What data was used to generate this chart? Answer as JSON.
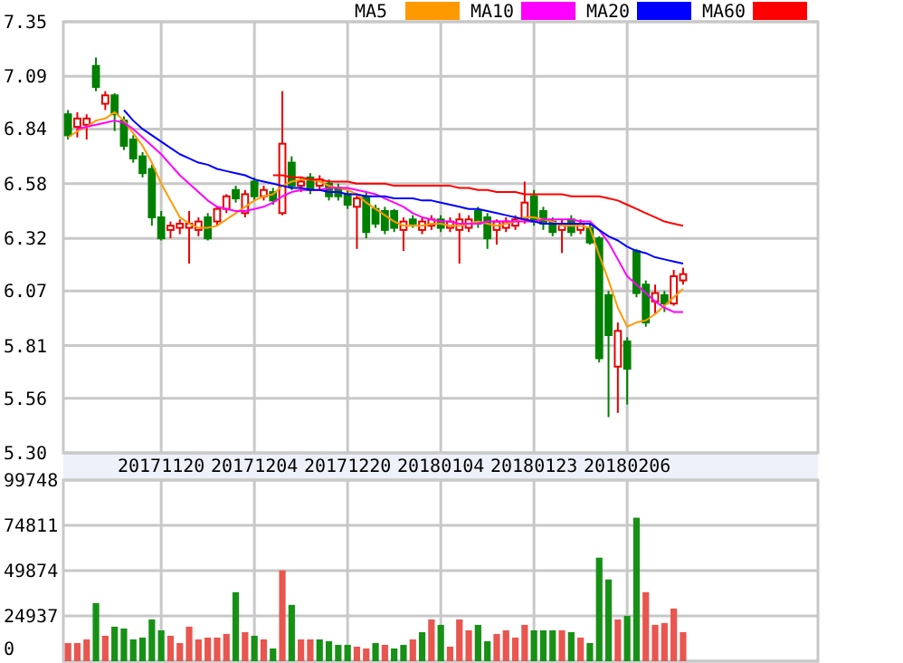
{
  "chart_data": [
    {
      "type": "candlestick",
      "categories": [
        null,
        null,
        null,
        null,
        null,
        null,
        null,
        null,
        null,
        null,
        "20171120",
        null,
        null,
        null,
        null,
        null,
        null,
        null,
        null,
        null,
        "20171204",
        null,
        null,
        null,
        null,
        null,
        null,
        null,
        null,
        null,
        "20171220",
        null,
        null,
        null,
        null,
        null,
        null,
        null,
        null,
        null,
        "20180104",
        null,
        null,
        null,
        null,
        null,
        null,
        null,
        null,
        null,
        "20180123",
        null,
        null,
        null,
        null,
        null,
        null,
        null,
        null,
        null,
        "20180206",
        null,
        null,
        null,
        null,
        null,
        null
      ],
      "ohlc": [
        [
          6.91,
          6.93,
          6.79,
          6.81
        ],
        [
          6.85,
          6.92,
          6.8,
          6.89
        ],
        [
          6.86,
          6.91,
          6.79,
          6.89
        ],
        [
          7.14,
          7.18,
          7.02,
          7.04
        ],
        [
          6.96,
          7.02,
          6.93,
          7.0
        ],
        [
          7.0,
          7.01,
          6.83,
          6.91
        ],
        [
          6.88,
          6.9,
          6.74,
          6.76
        ],
        [
          6.79,
          6.81,
          6.68,
          6.7
        ],
        [
          6.71,
          6.73,
          6.61,
          6.63
        ],
        [
          6.65,
          6.67,
          6.38,
          6.42
        ],
        [
          6.42,
          6.45,
          6.31,
          6.32
        ],
        [
          6.36,
          6.4,
          6.32,
          6.38
        ],
        [
          6.37,
          6.41,
          6.34,
          6.39
        ],
        [
          6.37,
          6.45,
          6.2,
          6.39
        ],
        [
          6.36,
          6.42,
          6.33,
          6.4
        ],
        [
          6.42,
          6.44,
          6.31,
          6.32
        ],
        [
          6.4,
          6.47,
          6.38,
          6.46
        ],
        [
          6.46,
          6.53,
          6.44,
          6.52
        ],
        [
          6.55,
          6.57,
          6.49,
          6.51
        ],
        [
          6.44,
          6.55,
          6.42,
          6.53
        ],
        [
          6.59,
          6.61,
          6.5,
          6.52
        ],
        [
          6.52,
          6.57,
          6.5,
          6.55
        ],
        [
          6.54,
          6.56,
          6.48,
          6.5
        ],
        [
          6.44,
          7.02,
          6.43,
          6.77
        ],
        [
          6.68,
          6.71,
          6.55,
          6.57
        ],
        [
          6.57,
          6.61,
          6.54,
          6.59
        ],
        [
          6.61,
          6.63,
          6.53,
          6.55
        ],
        [
          6.57,
          6.62,
          6.55,
          6.6
        ],
        [
          6.58,
          6.6,
          6.5,
          6.52
        ],
        [
          6.56,
          6.58,
          6.5,
          6.52
        ],
        [
          6.53,
          6.55,
          6.46,
          6.48
        ],
        [
          6.47,
          6.53,
          6.27,
          6.51
        ],
        [
          6.52,
          6.54,
          6.32,
          6.35
        ],
        [
          6.46,
          6.48,
          6.37,
          6.39
        ],
        [
          6.45,
          6.47,
          6.34,
          6.36
        ],
        [
          6.45,
          6.46,
          6.35,
          6.37
        ],
        [
          6.36,
          6.42,
          6.26,
          6.4
        ],
        [
          6.41,
          6.43,
          6.37,
          6.39
        ],
        [
          6.36,
          6.42,
          6.34,
          6.4
        ],
        [
          6.38,
          6.43,
          6.36,
          6.41
        ],
        [
          6.41,
          6.43,
          6.35,
          6.37
        ],
        [
          6.37,
          6.42,
          6.35,
          6.4
        ],
        [
          6.36,
          6.44,
          6.2,
          6.41
        ],
        [
          6.37,
          6.43,
          6.35,
          6.41
        ],
        [
          6.45,
          6.47,
          6.37,
          6.39
        ],
        [
          6.42,
          6.44,
          6.27,
          6.32
        ],
        [
          6.36,
          6.41,
          6.29,
          6.4
        ],
        [
          6.37,
          6.42,
          6.35,
          6.4
        ],
        [
          6.38,
          6.43,
          6.36,
          6.41
        ],
        [
          6.41,
          6.59,
          6.39,
          6.49
        ],
        [
          6.52,
          6.55,
          6.38,
          6.4
        ],
        [
          6.45,
          6.47,
          6.36,
          6.39
        ],
        [
          6.4,
          6.42,
          6.33,
          6.35
        ],
        [
          6.36,
          6.41,
          6.25,
          6.39
        ],
        [
          6.41,
          6.43,
          6.33,
          6.35
        ],
        [
          6.36,
          6.41,
          6.34,
          6.39
        ],
        [
          6.37,
          6.39,
          6.29,
          6.3
        ],
        [
          6.32,
          6.33,
          5.73,
          5.75
        ],
        [
          6.05,
          6.07,
          5.47,
          5.86
        ],
        [
          5.71,
          5.92,
          5.49,
          5.88
        ],
        [
          5.83,
          5.85,
          5.53,
          5.7
        ],
        [
          6.26,
          6.27,
          6.04,
          6.06
        ],
        [
          6.1,
          6.12,
          5.9,
          5.92
        ],
        [
          6.02,
          6.1,
          5.96,
          6.06
        ],
        [
          6.05,
          6.07,
          5.97,
          6.01
        ],
        [
          6.01,
          6.17,
          6.0,
          6.14
        ],
        [
          6.12,
          6.18,
          6.1,
          6.15
        ]
      ],
      "colors": [
        "#008000",
        "#e60000",
        "#e60000",
        "#008000",
        "#e60000",
        "#008000",
        "#008000",
        "#008000",
        "#008000",
        "#008000",
        "#008000",
        "#e60000",
        "#e60000",
        "#e60000",
        "#e60000",
        "#008000",
        "#e60000",
        "#e60000",
        "#008000",
        "#e60000",
        "#008000",
        "#e60000",
        "#008000",
        "#e60000",
        "#008000",
        "#e60000",
        "#008000",
        "#e60000",
        "#008000",
        "#008000",
        "#008000",
        "#e60000",
        "#008000",
        "#008000",
        "#008000",
        "#008000",
        "#e60000",
        "#008000",
        "#e60000",
        "#e60000",
        "#008000",
        "#e60000",
        "#e60000",
        "#e60000",
        "#008000",
        "#008000",
        "#e60000",
        "#e60000",
        "#e60000",
        "#e60000",
        "#008000",
        "#008000",
        "#008000",
        "#e60000",
        "#008000",
        "#e60000",
        "#008000",
        "#008000",
        "#008000",
        "#e60000",
        "#008000",
        "#008000",
        "#008000",
        "#e60000",
        "#008000",
        "#e60000",
        "#e60000"
      ],
      "series": [
        {
          "name": "MA5",
          "type": "line",
          "color": "#ff9900",
          "values": [
            6.8,
            6.83,
            6.85,
            6.88,
            6.89,
            6.92,
            6.88,
            6.82,
            6.76,
            6.68,
            6.58,
            6.5,
            6.42,
            6.39,
            6.37,
            6.37,
            6.38,
            6.41,
            6.44,
            6.47,
            6.5,
            6.52,
            6.53,
            6.57,
            6.59,
            6.6,
            6.6,
            6.59,
            6.57,
            6.56,
            6.55,
            6.53,
            6.49,
            6.46,
            6.43,
            6.4,
            6.38,
            6.38,
            6.38,
            6.39,
            6.39,
            6.38,
            6.38,
            6.39,
            6.4,
            6.39,
            6.38,
            6.39,
            6.4,
            6.42,
            6.42,
            6.41,
            6.4,
            6.38,
            6.38,
            6.38,
            6.37,
            6.24,
            6.12,
            5.99,
            5.9,
            5.92,
            5.93,
            5.96,
            6.0,
            6.04,
            6.08
          ]
        },
        {
          "name": "MA10",
          "type": "line",
          "color": "#ff00ff",
          "values": [
            null,
            6.84,
            6.85,
            6.86,
            6.87,
            6.88,
            6.87,
            6.84,
            6.8,
            6.76,
            6.72,
            6.67,
            6.62,
            6.58,
            6.54,
            6.5,
            6.47,
            6.46,
            6.45,
            6.45,
            6.46,
            6.47,
            6.49,
            6.52,
            6.54,
            6.55,
            6.55,
            6.55,
            6.56,
            6.56,
            6.56,
            6.55,
            6.54,
            6.53,
            6.51,
            6.49,
            6.47,
            6.44,
            6.42,
            6.41,
            6.4,
            6.4,
            6.39,
            6.39,
            6.39,
            6.4,
            6.4,
            6.4,
            6.4,
            6.4,
            6.4,
            6.41,
            6.41,
            6.41,
            6.41,
            6.4,
            6.4,
            6.36,
            6.3,
            6.22,
            6.14,
            6.1,
            6.06,
            6.02,
            5.99,
            5.97,
            5.97
          ]
        },
        {
          "name": "MA20",
          "type": "line",
          "color": "#0000ff",
          "values": [
            null,
            null,
            null,
            null,
            null,
            null,
            6.93,
            6.88,
            6.84,
            6.81,
            6.78,
            6.75,
            6.72,
            6.7,
            6.68,
            6.67,
            6.65,
            6.64,
            6.63,
            6.62,
            6.6,
            6.59,
            6.58,
            6.57,
            6.56,
            6.56,
            6.55,
            6.55,
            6.54,
            6.54,
            6.53,
            6.53,
            6.52,
            6.52,
            6.52,
            6.51,
            6.51,
            6.51,
            6.5,
            6.5,
            6.49,
            6.48,
            6.47,
            6.46,
            6.46,
            6.45,
            6.44,
            6.43,
            6.42,
            6.41,
            6.4,
            6.39,
            6.39,
            6.39,
            6.39,
            6.39,
            6.39,
            6.36,
            6.33,
            6.31,
            6.28,
            6.26,
            6.25,
            6.23,
            6.22,
            6.21,
            6.2
          ]
        },
        {
          "name": "MA60",
          "type": "line",
          "color": "#ff0000",
          "values": [
            null,
            null,
            null,
            null,
            null,
            null,
            null,
            null,
            null,
            null,
            null,
            null,
            null,
            null,
            null,
            null,
            null,
            null,
            null,
            null,
            null,
            null,
            6.62,
            6.62,
            6.61,
            6.61,
            6.6,
            6.6,
            6.59,
            6.59,
            6.59,
            6.58,
            6.58,
            6.58,
            6.58,
            6.57,
            6.57,
            6.57,
            6.57,
            6.57,
            6.57,
            6.57,
            6.56,
            6.56,
            6.55,
            6.55,
            6.54,
            6.54,
            6.54,
            6.53,
            6.53,
            6.53,
            6.53,
            6.53,
            6.52,
            6.52,
            6.52,
            6.52,
            6.51,
            6.5,
            6.48,
            6.46,
            6.44,
            6.42,
            6.4,
            6.39,
            6.38
          ]
        }
      ],
      "ylim": [
        5.3,
        7.35
      ],
      "yticks": [
        {
          "value": 5.3,
          "label": "5.30"
        },
        5.56,
        5.81,
        6.07,
        6.32,
        6.58,
        6.84,
        7.09,
        7.35
      ],
      "grid": true,
      "legend": "top right"
    },
    {
      "type": "bar",
      "categories": [
        null,
        null,
        null,
        null,
        null,
        null,
        null,
        null,
        null,
        null,
        "20171120",
        null,
        null,
        null,
        null,
        null,
        null,
        null,
        null,
        null,
        "20171204",
        null,
        null,
        null,
        null,
        null,
        null,
        null,
        null,
        null,
        "20171220",
        null,
        null,
        null,
        null,
        null,
        null,
        null,
        null,
        null,
        "20180104",
        null,
        null,
        null,
        null,
        null,
        null,
        null,
        null,
        null,
        "20180123",
        null,
        null,
        null,
        null,
        null,
        null,
        null,
        null,
        null,
        "20180206",
        null,
        null,
        null,
        null,
        null,
        null
      ],
      "values": [
        10000,
        10000,
        12000,
        32000,
        14000,
        19000,
        18000,
        12000,
        13000,
        23000,
        17000,
        14000,
        10000,
        19000,
        12000,
        13000,
        13000,
        15000,
        38000,
        16000,
        14000,
        12000,
        7000,
        50000,
        31000,
        12000,
        12000,
        12000,
        11000,
        9000,
        9000,
        8000,
        7000,
        10000,
        9000,
        7000,
        9000,
        12000,
        16000,
        23000,
        20000,
        8000,
        23000,
        17000,
        20000,
        11000,
        15000,
        17000,
        13000,
        20000,
        17000,
        17000,
        17000,
        17000,
        16000,
        13000,
        10000,
        57000,
        45000,
        23000,
        25000,
        79000,
        38000,
        20000,
        21000,
        29000,
        16000
      ],
      "colors": [
        "#e8564f",
        "#e8564f",
        "#e8564f",
        "#169116",
        "#e8564f",
        "#169116",
        "#169116",
        "#169116",
        "#169116",
        "#169116",
        "#169116",
        "#e8564f",
        "#e8564f",
        "#e8564f",
        "#e8564f",
        "#e8564f",
        "#e8564f",
        "#e8564f",
        "#169116",
        "#e8564f",
        "#169116",
        "#e8564f",
        "#169116",
        "#e8564f",
        "#169116",
        "#e8564f",
        "#e8564f",
        "#169116",
        "#169116",
        "#169116",
        "#169116",
        "#e8564f",
        "#e8564f",
        "#169116",
        "#e8564f",
        "#169116",
        "#169116",
        "#e8564f",
        "#169116",
        "#e8564f",
        "#169116",
        "#e8564f",
        "#e8564f",
        "#e8564f",
        "#169116",
        "#169116",
        "#e8564f",
        "#e8564f",
        "#e8564f",
        "#e8564f",
        "#169116",
        "#169116",
        "#169116",
        "#e8564f",
        "#169116",
        "#e8564f",
        "#169116",
        "#169116",
        "#169116",
        "#e8564f",
        "#169116",
        "#169116",
        "#e8564f",
        "#e8564f",
        "#e8564f",
        "#e8564f",
        "#e8564f"
      ],
      "ylim": [
        0,
        99748
      ],
      "yticks": [
        0,
        24937,
        49874,
        74811,
        99748
      ],
      "grid": true,
      "tick_labels": "y"
    }
  ]
}
